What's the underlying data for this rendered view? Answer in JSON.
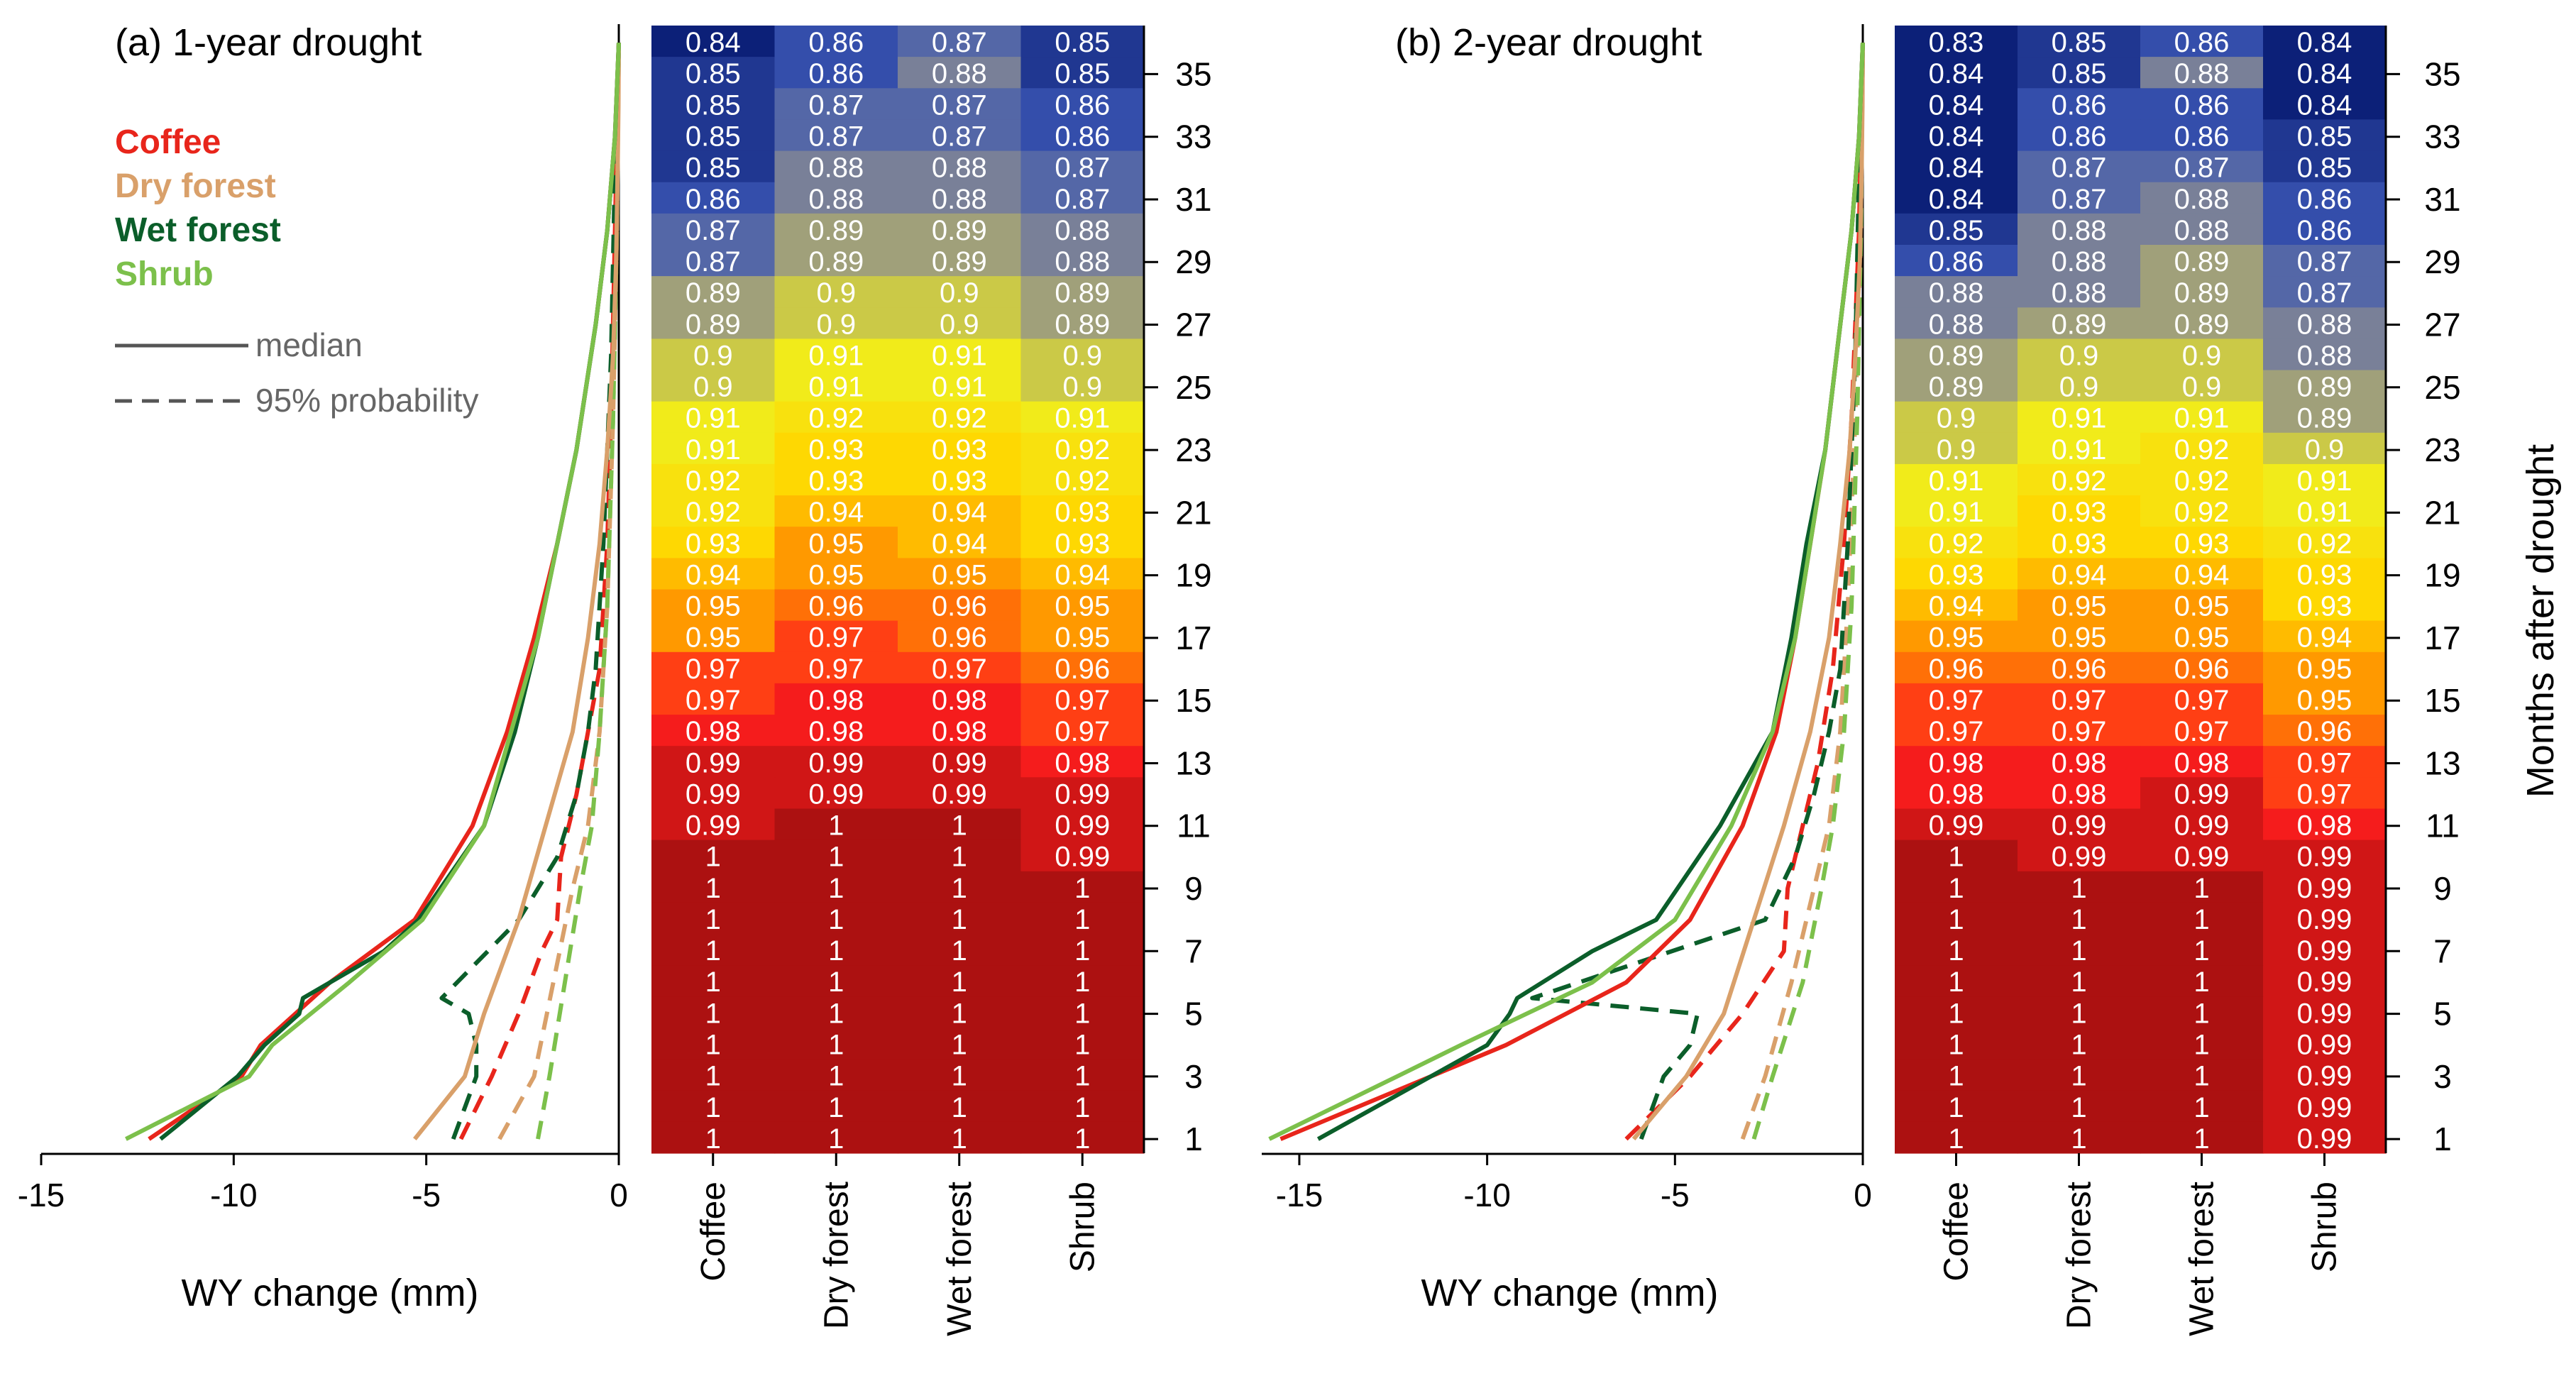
{
  "figure": {
    "months_axis_label": "Months after drought",
    "month_ticks": [
      1,
      3,
      5,
      7,
      9,
      11,
      13,
      15,
      17,
      19,
      21,
      23,
      25,
      27,
      29,
      31,
      33,
      35
    ],
    "categories": [
      "Coffee",
      "Dry forest",
      "Wet forest",
      "Shrub"
    ],
    "legend": {
      "entries": [
        {
          "name": "Coffee",
          "color": "#e8251b"
        },
        {
          "name": "Dry forest",
          "color": "#d9a06a"
        },
        {
          "name": "Wet forest",
          "color": "#0b5e2a"
        },
        {
          "name": "Shrub",
          "color": "#7cc04b"
        }
      ],
      "median_label": "median",
      "prob_label": "95% probability"
    }
  },
  "chart_data": [
    {
      "type": "line",
      "panel": "a",
      "title": "(a) 1-year drought",
      "xlabel": "WY change (mm)",
      "ylabel": "Months after drought",
      "xlim": [
        -15,
        0
      ],
      "ylim": [
        1,
        36
      ],
      "xticks": [
        -15,
        -10,
        -5,
        0
      ],
      "series": [
        {
          "name": "Coffee",
          "style": "median",
          "months": [
            1,
            3,
            4,
            6,
            8,
            11,
            14,
            17,
            20,
            23,
            27,
            30,
            33,
            36
          ],
          "values": [
            -12.2,
            -9.8,
            -9.3,
            -7.5,
            -5.3,
            -3.8,
            -2.9,
            -2.2,
            -1.6,
            -1.1,
            -0.6,
            -0.3,
            -0.1,
            0.0
          ]
        },
        {
          "name": "Dry forest",
          "style": "median",
          "months": [
            1,
            3,
            5,
            8,
            11,
            14,
            17,
            20,
            23,
            26,
            29,
            32,
            34,
            36
          ],
          "values": [
            -5.3,
            -4.0,
            -3.5,
            -2.6,
            -1.9,
            -1.2,
            -0.8,
            -0.5,
            -0.3,
            -0.15,
            -0.07,
            -0.03,
            -0.01,
            0.0
          ]
        },
        {
          "name": "Wet forest",
          "style": "median",
          "months": [
            1,
            3,
            4,
            5,
            5.5,
            7,
            8,
            11,
            14,
            17,
            20,
            23,
            27,
            30,
            33,
            36
          ],
          "values": [
            -11.9,
            -9.9,
            -9.2,
            -8.3,
            -8.2,
            -6.1,
            -5.2,
            -3.5,
            -2.7,
            -2.1,
            -1.6,
            -1.1,
            -0.6,
            -0.3,
            -0.1,
            0.0
          ]
        },
        {
          "name": "Shrub",
          "style": "median",
          "months": [
            1,
            3,
            4,
            6,
            8,
            11,
            14,
            17,
            20,
            23,
            27,
            30,
            33,
            36
          ],
          "values": [
            -12.8,
            -9.6,
            -9.0,
            -7.0,
            -5.1,
            -3.5,
            -2.8,
            -2.1,
            -1.6,
            -1.1,
            -0.6,
            -0.3,
            -0.1,
            0.0
          ]
        },
        {
          "name": "Coffee",
          "style": "p95",
          "months": [
            1,
            3,
            5,
            7,
            8,
            10,
            12,
            14,
            16,
            20,
            24,
            30,
            36
          ],
          "values": [
            -4.1,
            -3.3,
            -2.6,
            -2.0,
            -1.6,
            -1.5,
            -1.1,
            -0.8,
            -0.5,
            -0.3,
            -0.2,
            -0.1,
            0.0
          ]
        },
        {
          "name": "Dry forest",
          "style": "p95",
          "months": [
            1,
            3,
            6,
            9,
            11,
            14,
            18,
            24,
            30,
            36
          ],
          "values": [
            -3.1,
            -2.2,
            -1.7,
            -1.2,
            -0.8,
            -0.5,
            -0.3,
            -0.15,
            -0.05,
            0.0
          ]
        },
        {
          "name": "Wet forest",
          "style": "p95",
          "months": [
            1,
            3,
            4,
            5,
            5.5,
            8,
            10,
            12,
            14,
            16,
            20,
            26,
            32,
            36
          ],
          "values": [
            -4.3,
            -3.7,
            -3.7,
            -3.9,
            -4.6,
            -2.6,
            -1.6,
            -1.1,
            -0.8,
            -0.6,
            -0.4,
            -0.2,
            -0.1,
            0.0
          ]
        },
        {
          "name": "Shrub",
          "style": "p95",
          "months": [
            1,
            3,
            6,
            9,
            11,
            14,
            18,
            24,
            30,
            36
          ],
          "values": [
            -2.1,
            -1.8,
            -1.4,
            -1.0,
            -0.7,
            -0.5,
            -0.3,
            -0.15,
            -0.05,
            0.0
          ]
        }
      ]
    },
    {
      "type": "heatmap",
      "panel": "a",
      "xlabel": "",
      "ylabel": "Months after drought",
      "color_scale": {
        "low": 0.84,
        "high": 1.0,
        "stops": [
          "#0c2078",
          "#3a55b2",
          "#8e8e90",
          "#f0ec1c",
          "#ffd700",
          "#ff8b00",
          "#ff1d1d",
          "#ac1111"
        ]
      },
      "columns": [
        "Coffee",
        "Dry forest",
        "Wet forest",
        "Shrub"
      ],
      "rows_month_desc": [
        36,
        35,
        34,
        33,
        32,
        31,
        30,
        29,
        28,
        27,
        26,
        25,
        24,
        23,
        22,
        21,
        20,
        19,
        18,
        17,
        16,
        15,
        14,
        13,
        12,
        11,
        10,
        9,
        8,
        7,
        6,
        5,
        4,
        3,
        2,
        1
      ],
      "values": [
        [
          "0.84",
          "0.86",
          "0.87",
          "0.85"
        ],
        [
          "0.85",
          "0.86",
          "0.88",
          "0.85"
        ],
        [
          "0.85",
          "0.87",
          "0.87",
          "0.86"
        ],
        [
          "0.85",
          "0.87",
          "0.87",
          "0.86"
        ],
        [
          "0.85",
          "0.88",
          "0.88",
          "0.87"
        ],
        [
          "0.86",
          "0.88",
          "0.88",
          "0.87"
        ],
        [
          "0.87",
          "0.89",
          "0.89",
          "0.88"
        ],
        [
          "0.87",
          "0.89",
          "0.89",
          "0.88"
        ],
        [
          "0.89",
          "0.9",
          "0.9",
          "0.89"
        ],
        [
          "0.89",
          "0.9",
          "0.9",
          "0.89"
        ],
        [
          "0.9",
          "0.91",
          "0.91",
          "0.9"
        ],
        [
          "0.9",
          "0.91",
          "0.91",
          "0.9"
        ],
        [
          "0.91",
          "0.92",
          "0.92",
          "0.91"
        ],
        [
          "0.91",
          "0.93",
          "0.93",
          "0.92"
        ],
        [
          "0.92",
          "0.93",
          "0.93",
          "0.92"
        ],
        [
          "0.92",
          "0.94",
          "0.94",
          "0.93"
        ],
        [
          "0.93",
          "0.95",
          "0.94",
          "0.93"
        ],
        [
          "0.94",
          "0.95",
          "0.95",
          "0.94"
        ],
        [
          "0.95",
          "0.96",
          "0.96",
          "0.95"
        ],
        [
          "0.95",
          "0.97",
          "0.96",
          "0.95"
        ],
        [
          "0.97",
          "0.97",
          "0.97",
          "0.96"
        ],
        [
          "0.97",
          "0.98",
          "0.98",
          "0.97"
        ],
        [
          "0.98",
          "0.98",
          "0.98",
          "0.97"
        ],
        [
          "0.99",
          "0.99",
          "0.99",
          "0.98"
        ],
        [
          "0.99",
          "0.99",
          "0.99",
          "0.99"
        ],
        [
          "0.99",
          "1",
          "1",
          "0.99"
        ],
        [
          "1",
          "1",
          "1",
          "0.99"
        ],
        [
          "1",
          "1",
          "1",
          "1"
        ],
        [
          "1",
          "1",
          "1",
          "1"
        ],
        [
          "1",
          "1",
          "1",
          "1"
        ],
        [
          "1",
          "1",
          "1",
          "1"
        ],
        [
          "1",
          "1",
          "1",
          "1"
        ],
        [
          "1",
          "1",
          "1",
          "1"
        ],
        [
          "1",
          "1",
          "1",
          "1"
        ],
        [
          "1",
          "1",
          "1",
          "1"
        ],
        [
          "1",
          "1",
          "1",
          "1"
        ]
      ]
    },
    {
      "type": "line",
      "panel": "b",
      "title": "(b) 2-year drought",
      "xlabel": "WY change (mm)",
      "ylabel": "Months after drought",
      "xlim": [
        -16,
        0
      ],
      "ylim": [
        1,
        36
      ],
      "xticks": [
        -15,
        -10,
        -5,
        0
      ],
      "series": [
        {
          "name": "Coffee",
          "style": "median",
          "months": [
            1,
            3,
            4,
            6,
            8,
            11,
            14,
            17,
            20,
            23,
            27,
            30,
            33,
            36
          ],
          "values": [
            -15.5,
            -11.5,
            -9.5,
            -6.3,
            -4.6,
            -3.2,
            -2.3,
            -1.8,
            -1.4,
            -1.0,
            -0.6,
            -0.3,
            -0.1,
            0.0
          ]
        },
        {
          "name": "Dry forest",
          "style": "median",
          "months": [
            1,
            3,
            5,
            8,
            11,
            14,
            17,
            20,
            23,
            26,
            29,
            32,
            34,
            36
          ],
          "values": [
            -6.1,
            -4.7,
            -3.7,
            -2.9,
            -2.1,
            -1.4,
            -0.9,
            -0.6,
            -0.35,
            -0.2,
            -0.08,
            -0.03,
            -0.01,
            0.0
          ]
        },
        {
          "name": "Wet forest",
          "style": "median",
          "months": [
            1,
            3,
            4,
            5,
            5.5,
            7,
            8,
            11,
            14,
            17,
            20,
            23,
            27,
            30,
            33,
            36
          ],
          "values": [
            -14.5,
            -11.5,
            -10.0,
            -9.4,
            -9.2,
            -7.2,
            -5.5,
            -3.8,
            -2.4,
            -1.9,
            -1.5,
            -1.0,
            -0.6,
            -0.3,
            -0.1,
            0.0
          ]
        },
        {
          "name": "Shrub",
          "style": "median",
          "months": [
            1,
            3,
            4,
            6,
            8,
            11,
            14,
            17,
            20,
            23,
            27,
            30,
            33,
            36
          ],
          "values": [
            -15.8,
            -12.4,
            -10.7,
            -7.2,
            -5.0,
            -3.5,
            -2.4,
            -1.8,
            -1.4,
            -1.0,
            -0.6,
            -0.3,
            -0.1,
            0.0
          ]
        },
        {
          "name": "Coffee",
          "style": "p95",
          "months": [
            1,
            3,
            5,
            7,
            9,
            11,
            13,
            16,
            20,
            24,
            30,
            36
          ],
          "values": [
            -6.3,
            -4.6,
            -3.2,
            -2.1,
            -2.0,
            -1.6,
            -1.2,
            -0.8,
            -0.5,
            -0.3,
            -0.1,
            0.0
          ]
        },
        {
          "name": "Dry forest",
          "style": "p95",
          "months": [
            1,
            3,
            6,
            9,
            11,
            14,
            18,
            24,
            30,
            36
          ],
          "values": [
            -3.2,
            -2.6,
            -1.9,
            -1.3,
            -0.9,
            -0.6,
            -0.4,
            -0.2,
            -0.05,
            0.0
          ]
        },
        {
          "name": "Wet forest",
          "style": "p95",
          "months": [
            1,
            3,
            4,
            5,
            5.5,
            8,
            10,
            12,
            14,
            16,
            20,
            26,
            32,
            36
          ],
          "values": [
            -5.9,
            -5.3,
            -4.6,
            -4.4,
            -8.8,
            -2.6,
            -1.8,
            -1.3,
            -0.9,
            -0.6,
            -0.4,
            -0.2,
            -0.1,
            0.0
          ]
        },
        {
          "name": "Shrub",
          "style": "p95",
          "months": [
            1,
            3,
            6,
            9,
            11,
            14,
            18,
            24,
            30,
            36
          ],
          "values": [
            -2.9,
            -2.4,
            -1.6,
            -1.1,
            -0.8,
            -0.5,
            -0.3,
            -0.15,
            -0.05,
            0.0
          ]
        }
      ]
    },
    {
      "type": "heatmap",
      "panel": "b",
      "xlabel": "",
      "ylabel": "Months after drought",
      "color_scale": {
        "low": 0.84,
        "high": 1.0,
        "stops": [
          "#0c2078",
          "#3a55b2",
          "#8e8e90",
          "#f0ec1c",
          "#ffd700",
          "#ff8b00",
          "#ff1d1d",
          "#ac1111"
        ]
      },
      "columns": [
        "Coffee",
        "Dry forest",
        "Wet forest",
        "Shrub"
      ],
      "rows_month_desc": [
        36,
        35,
        34,
        33,
        32,
        31,
        30,
        29,
        28,
        27,
        26,
        25,
        24,
        23,
        22,
        21,
        20,
        19,
        18,
        17,
        16,
        15,
        14,
        13,
        12,
        11,
        10,
        9,
        8,
        7,
        6,
        5,
        4,
        3,
        2,
        1
      ],
      "values": [
        [
          "0.83",
          "0.85",
          "0.86",
          "0.84"
        ],
        [
          "0.84",
          "0.85",
          "0.88",
          "0.84"
        ],
        [
          "0.84",
          "0.86",
          "0.86",
          "0.84"
        ],
        [
          "0.84",
          "0.86",
          "0.86",
          "0.85"
        ],
        [
          "0.84",
          "0.87",
          "0.87",
          "0.85"
        ],
        [
          "0.84",
          "0.87",
          "0.88",
          "0.86"
        ],
        [
          "0.85",
          "0.88",
          "0.88",
          "0.86"
        ],
        [
          "0.86",
          "0.88",
          "0.89",
          "0.87"
        ],
        [
          "0.88",
          "0.88",
          "0.89",
          "0.87"
        ],
        [
          "0.88",
          "0.89",
          "0.89",
          "0.88"
        ],
        [
          "0.89",
          "0.9",
          "0.9",
          "0.88"
        ],
        [
          "0.89",
          "0.9",
          "0.9",
          "0.89"
        ],
        [
          "0.9",
          "0.91",
          "0.91",
          "0.89"
        ],
        [
          "0.9",
          "0.91",
          "0.92",
          "0.9"
        ],
        [
          "0.91",
          "0.92",
          "0.92",
          "0.91"
        ],
        [
          "0.91",
          "0.93",
          "0.92",
          "0.91"
        ],
        [
          "0.92",
          "0.93",
          "0.93",
          "0.92"
        ],
        [
          "0.93",
          "0.94",
          "0.94",
          "0.93"
        ],
        [
          "0.94",
          "0.95",
          "0.95",
          "0.93"
        ],
        [
          "0.95",
          "0.95",
          "0.95",
          "0.94"
        ],
        [
          "0.96",
          "0.96",
          "0.96",
          "0.95"
        ],
        [
          "0.97",
          "0.97",
          "0.97",
          "0.95"
        ],
        [
          "0.97",
          "0.97",
          "0.97",
          "0.96"
        ],
        [
          "0.98",
          "0.98",
          "0.98",
          "0.97"
        ],
        [
          "0.98",
          "0.98",
          "0.99",
          "0.97"
        ],
        [
          "0.99",
          "0.99",
          "0.99",
          "0.98"
        ],
        [
          "1",
          "0.99",
          "0.99",
          "0.99"
        ],
        [
          "1",
          "1",
          "1",
          "0.99"
        ],
        [
          "1",
          "1",
          "1",
          "0.99"
        ],
        [
          "1",
          "1",
          "1",
          "0.99"
        ],
        [
          "1",
          "1",
          "1",
          "0.99"
        ],
        [
          "1",
          "1",
          "1",
          "0.99"
        ],
        [
          "1",
          "1",
          "1",
          "0.99"
        ],
        [
          "1",
          "1",
          "1",
          "0.99"
        ],
        [
          "1",
          "1",
          "1",
          "0.99"
        ],
        [
          "1",
          "1",
          "1",
          "0.99"
        ]
      ]
    }
  ]
}
